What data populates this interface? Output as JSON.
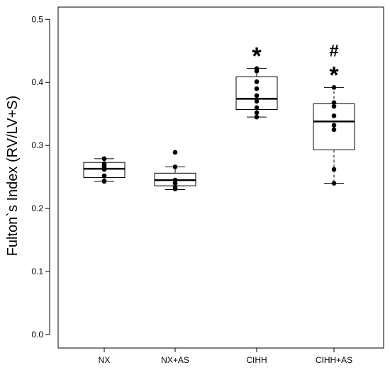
{
  "chart_data": {
    "type": "box",
    "title": "",
    "xlabel": "",
    "ylabel": "Fulton`s Index (RV/LV+S)",
    "ylim": [
      0.0,
      0.5
    ],
    "yticks": [
      0.0,
      0.1,
      0.2,
      0.3,
      0.4,
      0.5
    ],
    "ytick_labels": [
      "0.0",
      "0.1",
      "0.2",
      "0.3",
      "0.4",
      "0.5"
    ],
    "grid": false,
    "groups": [
      {
        "label": "NX",
        "whisker_low": 0.243,
        "q1": 0.249,
        "median": 0.263,
        "q3": 0.273,
        "whisker_high": 0.279,
        "points": [
          0.243,
          0.244,
          0.252,
          0.262,
          0.265,
          0.268,
          0.271,
          0.279
        ],
        "annotations": []
      },
      {
        "label": "NX+AS",
        "whisker_low": 0.23,
        "q1": 0.236,
        "median": 0.245,
        "q3": 0.256,
        "whisker_high": 0.266,
        "points": [
          0.231,
          0.234,
          0.24,
          0.245,
          0.266,
          0.289
        ],
        "annotations": []
      },
      {
        "label": "CIHH",
        "whisker_low": 0.345,
        "q1": 0.357,
        "median": 0.374,
        "q3": 0.409,
        "whisker_high": 0.422,
        "points": [
          0.345,
          0.352,
          0.36,
          0.37,
          0.379,
          0.39,
          0.401,
          0.418,
          0.422
        ],
        "annotations": [
          "*"
        ]
      },
      {
        "label": "CIHH+AS",
        "whisker_low": 0.24,
        "q1": 0.293,
        "median": 0.338,
        "q3": 0.366,
        "whisker_high": 0.392,
        "points": [
          0.24,
          0.262,
          0.325,
          0.332,
          0.347,
          0.362,
          0.368,
          0.392
        ],
        "annotations": [
          "*",
          "#"
        ]
      }
    ]
  }
}
